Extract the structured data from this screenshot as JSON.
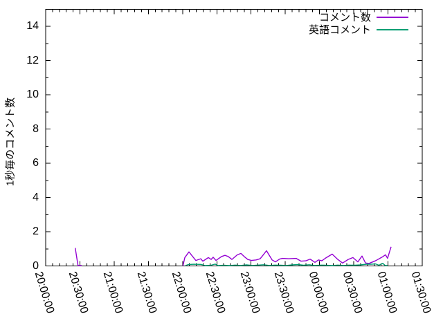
{
  "chart_data": {
    "type": "line",
    "title": "",
    "xlabel": "",
    "ylabel": "1秒毎のコメント数",
    "grid": false,
    "legend_position": "top-right-inside",
    "ylim": [
      0,
      15
    ],
    "y_major_ticks": [
      0,
      2,
      4,
      6,
      8,
      10,
      12,
      14
    ],
    "y_minor_ticks": [
      1,
      3,
      5,
      7,
      9,
      11,
      13
    ],
    "x_tick_labels": [
      "20:00:00",
      "20:30:00",
      "21:00:00",
      "21:30:00",
      "22:00:00",
      "22:30:00",
      "23:00:00",
      "23:30:00",
      "00:00:00",
      "00:30:00",
      "01:00:00",
      "01:30:00"
    ],
    "x_minor_divisions": 5,
    "x_unit": "minutes after 20:00:00",
    "x_range_minutes": [
      0,
      330
    ],
    "series": [
      {
        "name": "コメント数",
        "color": "#9400d3",
        "segments": [
          [
            [
              25.9,
              1.05
            ],
            [
              28.3,
              0.02
            ],
            [
              31.5,
              0.02
            ]
          ],
          [
            [
              120.3,
              0.0
            ],
            [
              121.9,
              0.49
            ],
            [
              125.6,
              0.82
            ],
            [
              128.0,
              0.62
            ],
            [
              131.6,
              0.32
            ],
            [
              135.9,
              0.42
            ],
            [
              137.7,
              0.28
            ],
            [
              142.6,
              0.49
            ],
            [
              145.0,
              0.38
            ],
            [
              146.8,
              0.51
            ],
            [
              149.2,
              0.32
            ],
            [
              154.1,
              0.55
            ],
            [
              157.1,
              0.62
            ],
            [
              160.0,
              0.55
            ],
            [
              163.2,
              0.38
            ],
            [
              168.0,
              0.65
            ],
            [
              171.1,
              0.73
            ],
            [
              174.0,
              0.55
            ],
            [
              177.1,
              0.38
            ],
            [
              180.2,
              0.32
            ],
            [
              184.4,
              0.35
            ],
            [
              188.0,
              0.42
            ],
            [
              193.5,
              0.89
            ],
            [
              198.4,
              0.35
            ],
            [
              201.4,
              0.24
            ],
            [
              205.0,
              0.4
            ],
            [
              207.5,
              0.44
            ],
            [
              213.0,
              0.42
            ],
            [
              219.6,
              0.44
            ],
            [
              223.8,
              0.28
            ],
            [
              228.0,
              0.3
            ],
            [
              231.7,
              0.4
            ],
            [
              236.0,
              0.21
            ],
            [
              239.0,
              0.35
            ],
            [
              242.0,
              0.3
            ],
            [
              245.1,
              0.45
            ],
            [
              251.1,
              0.69
            ],
            [
              256.0,
              0.38
            ],
            [
              260.2,
              0.17
            ],
            [
              265.1,
              0.38
            ],
            [
              269.3,
              0.49
            ],
            [
              273.6,
              0.24
            ],
            [
              277.2,
              0.58
            ],
            [
              280.3,
              0.17
            ],
            [
              283.5,
              0.15
            ],
            [
              289.3,
              0.31
            ],
            [
              295.4,
              0.54
            ],
            [
              297.8,
              0.65
            ],
            [
              299.6,
              0.45
            ],
            [
              302.7,
              1.12
            ]
          ]
        ]
      },
      {
        "name": "英語コメント",
        "color": "#009e73",
        "segments": [
          [
            [
              122.5,
              0.02
            ],
            [
              125.0,
              0.08
            ],
            [
              130.0,
              0.1
            ],
            [
              136.0,
              0.09
            ],
            [
              140.0,
              0.02
            ],
            [
              145.0,
              0.04
            ],
            [
              148.5,
              0.11
            ],
            [
              151.0,
              0.02
            ],
            [
              156.0,
              0.04
            ],
            [
              161.0,
              0.02
            ],
            [
              166.0,
              0.05
            ],
            [
              171.0,
              0.03
            ],
            [
              176.0,
              0.06
            ],
            [
              181.0,
              0.03
            ],
            [
              186.0,
              0.05
            ],
            [
              191.0,
              0.07
            ],
            [
              196.0,
              0.03
            ],
            [
              201.0,
              0.05
            ],
            [
              206.0,
              0.04
            ],
            [
              211.0,
              0.03
            ],
            [
              216.0,
              0.06
            ],
            [
              221.0,
              0.08
            ],
            [
              226.0,
              0.04
            ],
            [
              231.0,
              0.07
            ],
            [
              236.0,
              0.03
            ],
            [
              241.0,
              0.05
            ],
            [
              246.0,
              0.04
            ],
            [
              251.0,
              0.02
            ],
            [
              256.0,
              0.05
            ],
            [
              261.0,
              0.03
            ],
            [
              266.0,
              0.05
            ],
            [
              271.0,
              0.04
            ],
            [
              276.0,
              0.06
            ],
            [
              281.0,
              0.1
            ],
            [
              285.0,
              0.1
            ],
            [
              289.0,
              0.12
            ],
            [
              292.0,
              0.04
            ],
            [
              295.5,
              0.15
            ],
            [
              297.5,
              0.03
            ],
            [
              299.5,
              0.02
            ]
          ]
        ]
      }
    ]
  }
}
